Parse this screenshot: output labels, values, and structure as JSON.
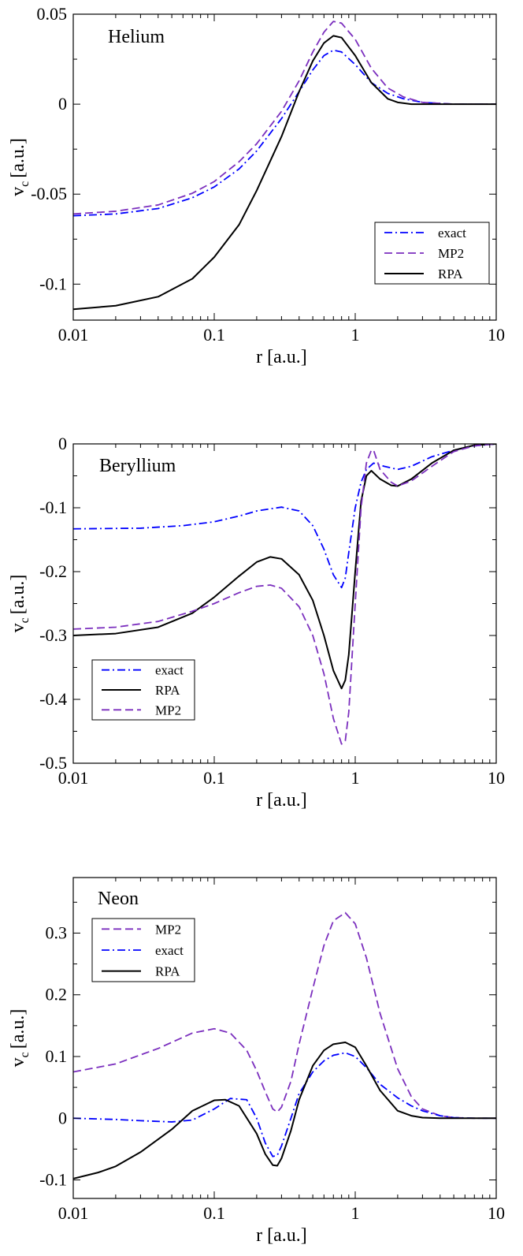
{
  "chart_data": [
    {
      "type": "line",
      "annotation": "Helium",
      "xlabel": "r [a.u.]",
      "ylabel": "v",
      "ylabel_sub": "c",
      "ylabel_unit": "[a.u.]",
      "xscale": "log",
      "xlim": [
        0.01,
        10
      ],
      "ylim": [
        -0.12,
        0.05
      ],
      "xticks": [
        0.01,
        0.1,
        1,
        10
      ],
      "xtick_labels": [
        "0.01",
        "0.1",
        "1",
        "10"
      ],
      "yticks": [
        0.05,
        0,
        -0.05,
        -0.1
      ],
      "ytick_labels": [
        "0.05",
        "0",
        "-0.05",
        "-0.1"
      ],
      "legend_position": "lower-right",
      "legend_order": [
        "exact",
        "MP2",
        "RPA"
      ],
      "series": [
        {
          "name": "exact",
          "style": "dashdot",
          "color": "#0000ff",
          "x": [
            0.01,
            0.02,
            0.04,
            0.07,
            0.1,
            0.15,
            0.2,
            0.3,
            0.4,
            0.5,
            0.6,
            0.7,
            0.8,
            1.0,
            1.3,
            1.7,
            2.2,
            3.0,
            5.0,
            10.0
          ],
          "y": [
            -0.062,
            -0.061,
            -0.058,
            -0.052,
            -0.046,
            -0.036,
            -0.026,
            -0.008,
            0.007,
            0.019,
            0.027,
            0.03,
            0.029,
            0.022,
            0.012,
            0.006,
            0.003,
            0.001,
            0.0,
            0.0
          ]
        },
        {
          "name": "MP2",
          "style": "dashed",
          "color": "#7b2fbe",
          "x": [
            0.01,
            0.02,
            0.04,
            0.07,
            0.1,
            0.15,
            0.2,
            0.3,
            0.4,
            0.5,
            0.6,
            0.7,
            0.8,
            1.0,
            1.3,
            1.7,
            2.2,
            3.0,
            5.0,
            10.0
          ],
          "y": [
            -0.061,
            -0.0595,
            -0.056,
            -0.0495,
            -0.043,
            -0.032,
            -0.022,
            -0.004,
            0.013,
            0.029,
            0.04,
            0.046,
            0.045,
            0.036,
            0.02,
            0.009,
            0.004,
            0.001,
            0.0,
            0.0
          ]
        },
        {
          "name": "RPA",
          "style": "solid",
          "color": "#000000",
          "x": [
            0.01,
            0.02,
            0.04,
            0.07,
            0.1,
            0.15,
            0.2,
            0.3,
            0.4,
            0.5,
            0.6,
            0.7,
            0.8,
            1.0,
            1.3,
            1.7,
            2.0,
            2.5,
            3.0,
            5.0,
            10.0
          ],
          "y": [
            -0.114,
            -0.112,
            -0.107,
            -0.097,
            -0.085,
            -0.067,
            -0.048,
            -0.018,
            0.007,
            0.024,
            0.034,
            0.038,
            0.037,
            0.027,
            0.012,
            0.003,
            0.001,
            0.0,
            0.0,
            0.0,
            0.0
          ]
        }
      ]
    },
    {
      "type": "line",
      "annotation": "Beryllium",
      "xlabel": "r [a.u.]",
      "ylabel": "v",
      "ylabel_sub": "c",
      "ylabel_unit": "[a.u.]",
      "xscale": "log",
      "xlim": [
        0.01,
        10
      ],
      "ylim": [
        -0.5,
        0
      ],
      "xticks": [
        0.01,
        0.1,
        1,
        10
      ],
      "xtick_labels": [
        "0.01",
        "0.1",
        "1",
        "10"
      ],
      "yticks": [
        0,
        -0.1,
        -0.2,
        -0.3,
        -0.4,
        -0.5
      ],
      "ytick_labels": [
        "0",
        "-0.1",
        "-0.2",
        "-0.3",
        "-0.4",
        "-0.5"
      ],
      "legend_position": "lower-left",
      "legend_order": [
        "exact",
        "RPA",
        "MP2"
      ],
      "series": [
        {
          "name": "exact",
          "style": "dashdot",
          "color": "#0000ff",
          "x": [
            0.01,
            0.03,
            0.06,
            0.1,
            0.15,
            0.2,
            0.3,
            0.4,
            0.5,
            0.6,
            0.7,
            0.8,
            0.85,
            0.9,
            1.0,
            1.1,
            1.2,
            1.35,
            1.6,
            2.0,
            2.5,
            3.5,
            5.0,
            7.0,
            10.0
          ],
          "y": [
            -0.133,
            -0.132,
            -0.128,
            -0.122,
            -0.113,
            -0.105,
            -0.099,
            -0.105,
            -0.128,
            -0.165,
            -0.205,
            -0.225,
            -0.21,
            -0.17,
            -0.1,
            -0.06,
            -0.04,
            -0.03,
            -0.035,
            -0.04,
            -0.035,
            -0.02,
            -0.01,
            -0.003,
            0.0
          ]
        },
        {
          "name": "RPA",
          "style": "solid",
          "color": "#000000",
          "x": [
            0.01,
            0.02,
            0.04,
            0.07,
            0.1,
            0.15,
            0.2,
            0.25,
            0.3,
            0.4,
            0.5,
            0.6,
            0.7,
            0.8,
            0.85,
            0.9,
            1.0,
            1.1,
            1.2,
            1.3,
            1.5,
            1.8,
            2.0,
            2.5,
            3.5,
            5.0,
            7.0,
            10.0
          ],
          "y": [
            -0.3,
            -0.297,
            -0.287,
            -0.265,
            -0.24,
            -0.207,
            -0.185,
            -0.177,
            -0.18,
            -0.205,
            -0.245,
            -0.3,
            -0.355,
            -0.383,
            -0.37,
            -0.33,
            -0.2,
            -0.09,
            -0.05,
            -0.042,
            -0.055,
            -0.065,
            -0.066,
            -0.055,
            -0.03,
            -0.01,
            -0.002,
            0.0
          ]
        },
        {
          "name": "MP2",
          "style": "dashed",
          "color": "#7b2fbe",
          "x": [
            0.01,
            0.02,
            0.04,
            0.07,
            0.1,
            0.15,
            0.2,
            0.25,
            0.3,
            0.4,
            0.5,
            0.6,
            0.7,
            0.8,
            0.85,
            0.9,
            1.0,
            1.1,
            1.2,
            1.3,
            1.35,
            1.5,
            1.8,
            2.0,
            2.5,
            3.5,
            5.0,
            7.0,
            10.0
          ],
          "y": [
            -0.29,
            -0.287,
            -0.278,
            -0.262,
            -0.25,
            -0.233,
            -0.223,
            -0.221,
            -0.226,
            -0.255,
            -0.3,
            -0.36,
            -0.43,
            -0.47,
            -0.465,
            -0.42,
            -0.25,
            -0.1,
            -0.03,
            -0.01,
            -0.01,
            -0.04,
            -0.06,
            -0.066,
            -0.058,
            -0.035,
            -0.012,
            -0.003,
            0.0
          ]
        }
      ]
    },
    {
      "type": "line",
      "annotation": "Neon",
      "xlabel": "r [a.u.]",
      "ylabel": "v",
      "ylabel_sub": "c",
      "ylabel_unit": "[a.u.]",
      "xscale": "log",
      "xlim": [
        0.01,
        10
      ],
      "ylim": [
        -0.13,
        0.39
      ],
      "xticks": [
        0.01,
        0.1,
        1,
        10
      ],
      "xtick_labels": [
        "0.01",
        "0.1",
        "1",
        "10"
      ],
      "yticks": [
        0.3,
        0.2,
        0.1,
        0,
        -0.1
      ],
      "ytick_labels": [
        "0.3",
        "0.2",
        "0.1",
        "0",
        "-0.1"
      ],
      "legend_position": "top-left",
      "legend_order": [
        "MP2",
        "exact",
        "RPA"
      ],
      "series": [
        {
          "name": "MP2",
          "style": "dashed",
          "color": "#7b2fbe",
          "x": [
            0.01,
            0.02,
            0.04,
            0.07,
            0.1,
            0.13,
            0.17,
            0.2,
            0.23,
            0.26,
            0.28,
            0.3,
            0.35,
            0.4,
            0.5,
            0.6,
            0.7,
            0.85,
            1.0,
            1.2,
            1.5,
            2.0,
            2.5,
            3.0,
            4.0,
            5.0,
            7.0,
            10.0
          ],
          "y": [
            0.075,
            0.088,
            0.113,
            0.138,
            0.145,
            0.138,
            0.11,
            0.077,
            0.043,
            0.015,
            0.01,
            0.018,
            0.06,
            0.12,
            0.21,
            0.28,
            0.32,
            0.333,
            0.315,
            0.26,
            0.17,
            0.08,
            0.035,
            0.015,
            0.004,
            0.001,
            0.0,
            0.0
          ]
        },
        {
          "name": "exact",
          "style": "dashdot",
          "color": "#0000ff",
          "x": [
            0.01,
            0.02,
            0.03,
            0.05,
            0.07,
            0.1,
            0.13,
            0.17,
            0.2,
            0.23,
            0.26,
            0.28,
            0.3,
            0.35,
            0.4,
            0.5,
            0.6,
            0.7,
            0.85,
            1.0,
            1.2,
            1.5,
            2.0,
            2.5,
            3.0,
            4.0,
            5.0,
            7.0,
            10.0
          ],
          "y": [
            0.0,
            -0.002,
            -0.004,
            -0.006,
            -0.003,
            0.015,
            0.032,
            0.03,
            0.0,
            -0.04,
            -0.062,
            -0.06,
            -0.045,
            0.0,
            0.04,
            0.075,
            0.093,
            0.102,
            0.106,
            0.1,
            0.082,
            0.055,
            0.033,
            0.02,
            0.012,
            0.004,
            0.001,
            0.0,
            0.0
          ]
        },
        {
          "name": "RPA",
          "style": "solid",
          "color": "#000000",
          "x": [
            0.01,
            0.015,
            0.02,
            0.03,
            0.05,
            0.07,
            0.1,
            0.12,
            0.15,
            0.2,
            0.23,
            0.26,
            0.28,
            0.3,
            0.35,
            0.4,
            0.5,
            0.6,
            0.7,
            0.85,
            1.0,
            1.2,
            1.5,
            2.0,
            2.5,
            3.0,
            4.0,
            5.0,
            7.0,
            10.0
          ],
          "y": [
            -0.098,
            -0.088,
            -0.078,
            -0.055,
            -0.018,
            0.012,
            0.029,
            0.03,
            0.02,
            -0.025,
            -0.058,
            -0.076,
            -0.077,
            -0.065,
            -0.02,
            0.03,
            0.085,
            0.11,
            0.12,
            0.123,
            0.115,
            0.085,
            0.045,
            0.012,
            0.004,
            0.001,
            0.0,
            0.0,
            0.0,
            0.0
          ]
        }
      ]
    }
  ]
}
